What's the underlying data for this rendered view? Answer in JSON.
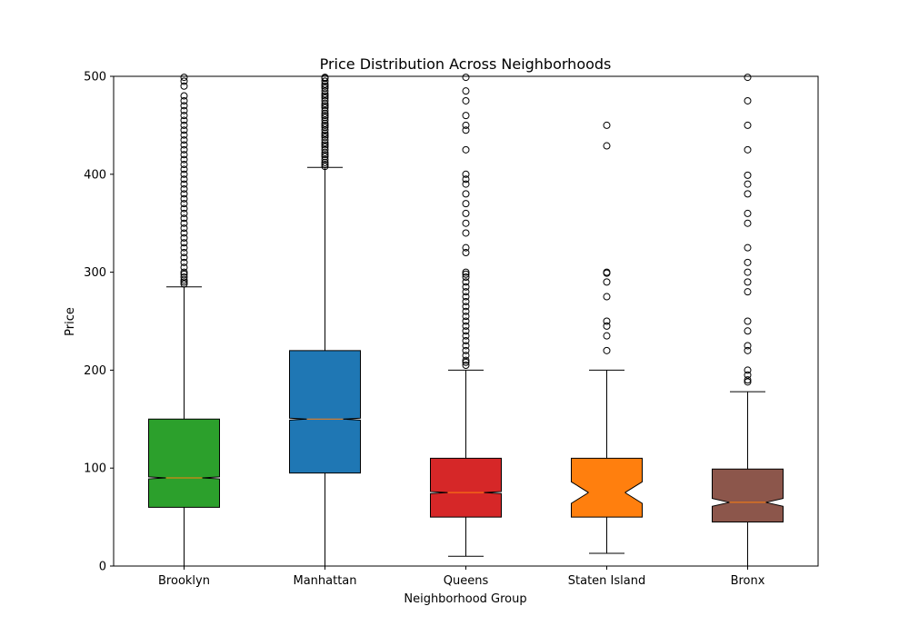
{
  "chart_data": {
    "type": "boxplot",
    "notched": true,
    "title": "Price Distribution Across Neighborhoods",
    "xlabel": "Neighborhood Group",
    "ylabel": "Price",
    "ylim": [
      0,
      500
    ],
    "yticks": [
      0,
      100,
      200,
      300,
      400,
      500
    ],
    "grid": false,
    "categories": [
      "Brooklyn",
      "Manhattan",
      "Queens",
      "Staten Island",
      "Bronx"
    ],
    "colors": [
      "#2ca02c",
      "#1f77b4",
      "#d62728",
      "#ff7f0e",
      "#8c564b"
    ],
    "median_color": "#ff7f0e",
    "boxes": [
      {
        "name": "Brooklyn",
        "q1": 60,
        "median": 90,
        "q3": 150,
        "whisker_low": 0,
        "whisker_high": 285,
        "notch_low": 89,
        "notch_high": 91,
        "fliers": [
          288,
          290,
          292,
          295,
          298,
          300,
          305,
          310,
          315,
          320,
          325,
          330,
          335,
          340,
          345,
          350,
          355,
          360,
          365,
          370,
          375,
          380,
          385,
          390,
          395,
          400,
          405,
          410,
          415,
          420,
          425,
          430,
          435,
          440,
          445,
          450,
          455,
          460,
          465,
          470,
          475,
          480,
          490,
          495,
          499
        ]
      },
      {
        "name": "Manhattan",
        "q1": 95,
        "median": 150,
        "q3": 220,
        "whisker_low": 0,
        "whisker_high": 407,
        "notch_low": 149,
        "notch_high": 151,
        "fliers": [
          408,
          410,
          412,
          415,
          418,
          420,
          422,
          425,
          428,
          430,
          432,
          435,
          438,
          440,
          442,
          445,
          448,
          450,
          452,
          455,
          458,
          460,
          462,
          465,
          468,
          470,
          472,
          475,
          478,
          480,
          482,
          485,
          488,
          490,
          492,
          495,
          498,
          499
        ]
      },
      {
        "name": "Queens",
        "q1": 50,
        "median": 75,
        "q3": 110,
        "whisker_low": 10,
        "whisker_high": 200,
        "notch_low": 74,
        "notch_high": 76,
        "fliers": [
          205,
          208,
          210,
          215,
          220,
          225,
          230,
          235,
          240,
          245,
          250,
          255,
          260,
          265,
          270,
          275,
          280,
          285,
          290,
          295,
          298,
          300,
          320,
          325,
          340,
          350,
          360,
          370,
          380,
          390,
          395,
          400,
          425,
          445,
          450,
          460,
          475,
          485,
          499
        ]
      },
      {
        "name": "Staten Island",
        "q1": 50,
        "median": 75,
        "q3": 110,
        "whisker_low": 13,
        "whisker_high": 200,
        "notch_low": 64,
        "notch_high": 86,
        "fliers": [
          220,
          235,
          245,
          250,
          275,
          290,
          299,
          300,
          429,
          450
        ]
      },
      {
        "name": "Bronx",
        "q1": 45,
        "median": 65,
        "q3": 99,
        "whisker_low": 0,
        "whisker_high": 178,
        "notch_low": 61,
        "notch_high": 69,
        "fliers": [
          188,
          190,
          195,
          200,
          220,
          225,
          240,
          250,
          280,
          290,
          300,
          310,
          325,
          350,
          360,
          380,
          390,
          399,
          425,
          450,
          475,
          499
        ]
      }
    ]
  }
}
